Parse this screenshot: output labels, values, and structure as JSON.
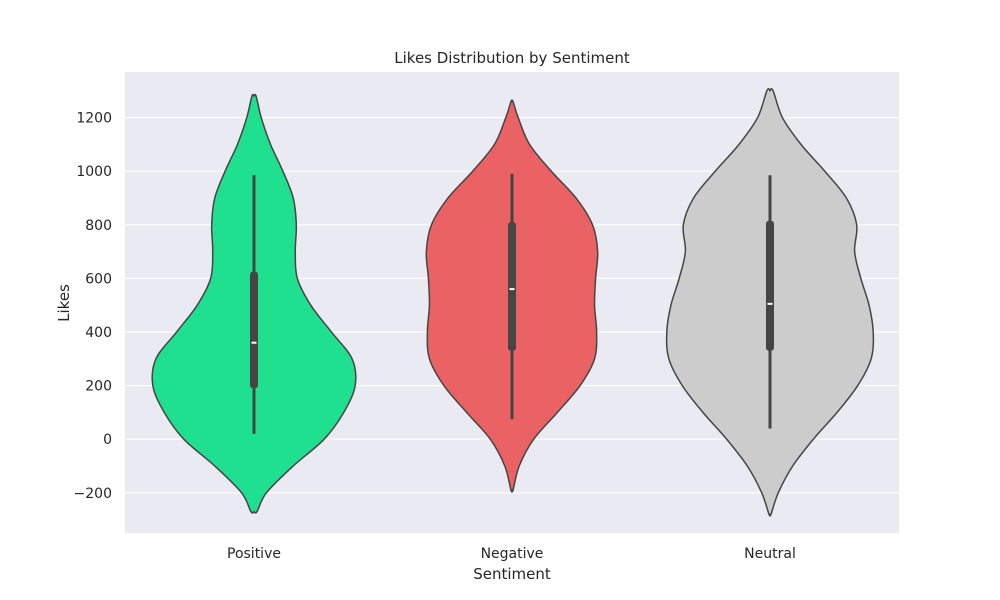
{
  "chart_data": {
    "type": "violin",
    "title": "Likes Distribution by Sentiment",
    "xlabel": "Sentiment",
    "ylabel": "Likes",
    "ylim": [
      -350,
      1370
    ],
    "yticks": [
      -200,
      0,
      200,
      400,
      600,
      800,
      1000,
      1200
    ],
    "ytick_labels": [
      "−200",
      "0",
      "200",
      "400",
      "600",
      "800",
      "1000",
      "1200"
    ],
    "grid": true,
    "categories": [
      "Positive",
      "Negative",
      "Neutral"
    ],
    "series": [
      {
        "category": "Positive",
        "color": "#1fe08f",
        "min": 20,
        "q1": 190,
        "median": 360,
        "q3": 625,
        "max": 985,
        "density": [
          [
            -270,
            0.03
          ],
          [
            -200,
            0.12
          ],
          [
            -100,
            0.38
          ],
          [
            0,
            0.68
          ],
          [
            100,
            0.87
          ],
          [
            200,
            0.98
          ],
          [
            300,
            0.95
          ],
          [
            400,
            0.75
          ],
          [
            500,
            0.55
          ],
          [
            600,
            0.42
          ],
          [
            700,
            0.4
          ],
          [
            800,
            0.41
          ],
          [
            900,
            0.38
          ],
          [
            1000,
            0.28
          ],
          [
            1100,
            0.16
          ],
          [
            1200,
            0.07
          ],
          [
            1280,
            0.02
          ]
        ]
      },
      {
        "category": "Negative",
        "color": "#ea6264",
        "min": 75,
        "q1": 330,
        "median": 560,
        "q3": 810,
        "max": 990,
        "density": [
          [
            -190,
            0.01
          ],
          [
            -100,
            0.07
          ],
          [
            0,
            0.21
          ],
          [
            100,
            0.44
          ],
          [
            200,
            0.66
          ],
          [
            300,
            0.8
          ],
          [
            400,
            0.82
          ],
          [
            500,
            0.8
          ],
          [
            600,
            0.81
          ],
          [
            700,
            0.83
          ],
          [
            800,
            0.78
          ],
          [
            900,
            0.62
          ],
          [
            1000,
            0.38
          ],
          [
            1100,
            0.17
          ],
          [
            1200,
            0.06
          ],
          [
            1260,
            0.01
          ]
        ]
      },
      {
        "category": "Neutral",
        "color": "#cccccc",
        "min": 40,
        "q1": 330,
        "median": 505,
        "q3": 815,
        "max": 985,
        "density": [
          [
            -280,
            0.01
          ],
          [
            -200,
            0.08
          ],
          [
            -100,
            0.22
          ],
          [
            0,
            0.42
          ],
          [
            100,
            0.65
          ],
          [
            200,
            0.85
          ],
          [
            300,
            0.98
          ],
          [
            400,
            1.0
          ],
          [
            500,
            0.96
          ],
          [
            600,
            0.88
          ],
          [
            700,
            0.82
          ],
          [
            800,
            0.84
          ],
          [
            900,
            0.74
          ],
          [
            1000,
            0.53
          ],
          [
            1100,
            0.3
          ],
          [
            1200,
            0.12
          ],
          [
            1300,
            0.03
          ]
        ]
      }
    ]
  }
}
